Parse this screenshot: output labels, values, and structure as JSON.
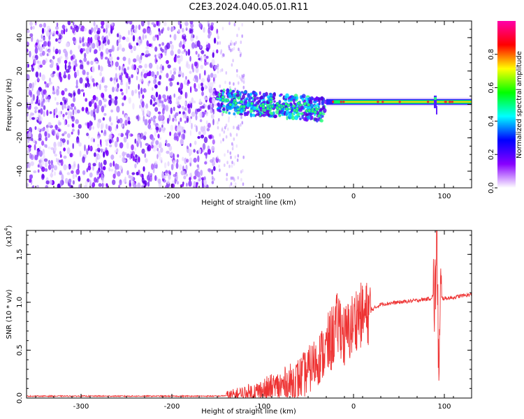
{
  "title": "C2E3.2024.040.05.01.R11",
  "chart_data": [
    {
      "type": "heatmap",
      "xlabel": "Height of straight line (km)",
      "ylabel": "Frequency (Hz)",
      "xlim": [
        -360,
        130
      ],
      "ylim": [
        -50,
        50
      ],
      "xticks": [
        -300,
        -200,
        -100,
        0,
        100
      ],
      "yticks": [
        -40,
        -20,
        0,
        20,
        40
      ],
      "colorbar": {
        "label": "Normalized spectral amplitude",
        "range": [
          0.0,
          1.0
        ],
        "ticks": [
          "0.0",
          "0.2",
          "0.4",
          "0.6",
          "0.8"
        ],
        "colors": [
          "#ffffff",
          "#8800ff",
          "#0000ff",
          "#00ffff",
          "#00ff00",
          "#ffff00",
          "#ff0000",
          "#ff00aa"
        ]
      },
      "signal_track": {
        "noise_region_x": [
          -360,
          -150
        ],
        "scatter_region_x": [
          -150,
          -30
        ],
        "carrier_region_x": [
          -30,
          130
        ],
        "carrier_frequency_hz": 1.5,
        "spike_x": 90
      }
    },
    {
      "type": "line",
      "xlabel": "Height of straight line (km)",
      "ylabel": "SNR (10 * v/v)",
      "yscale_label": "(x10",
      "yscale_exp": "4",
      "xlim": [
        -360,
        130
      ],
      "ylim": [
        0,
        1.75
      ],
      "xticks": [
        -300,
        -200,
        -100,
        0,
        100
      ],
      "yticks": [
        "0.0",
        "0.5",
        "1.0",
        "1.5"
      ],
      "series_color": "#ee3333",
      "series": [
        {
          "x": [
            -360,
            -300,
            -250,
            -200,
            -150,
            -130,
            -110,
            -100,
            -90,
            -80,
            -70,
            -60,
            -50,
            -40,
            -30,
            -25,
            -20,
            -15,
            -10,
            -5,
            0,
            5,
            10,
            20,
            30,
            50,
            70,
            85,
            90,
            92,
            94,
            96,
            100,
            110,
            120,
            130
          ],
          "values": [
            0.02,
            0.02,
            0.02,
            0.02,
            0.02,
            0.03,
            0.05,
            0.07,
            0.09,
            0.12,
            0.15,
            0.2,
            0.28,
            0.4,
            0.5,
            0.6,
            0.72,
            0.8,
            0.62,
            0.7,
            0.78,
            0.88,
            0.85,
            0.92,
            0.98,
            1.0,
            1.02,
            1.04,
            1.1,
            1.7,
            0.1,
            1.05,
            1.04,
            1.05,
            1.07,
            1.08
          ]
        }
      ]
    }
  ]
}
